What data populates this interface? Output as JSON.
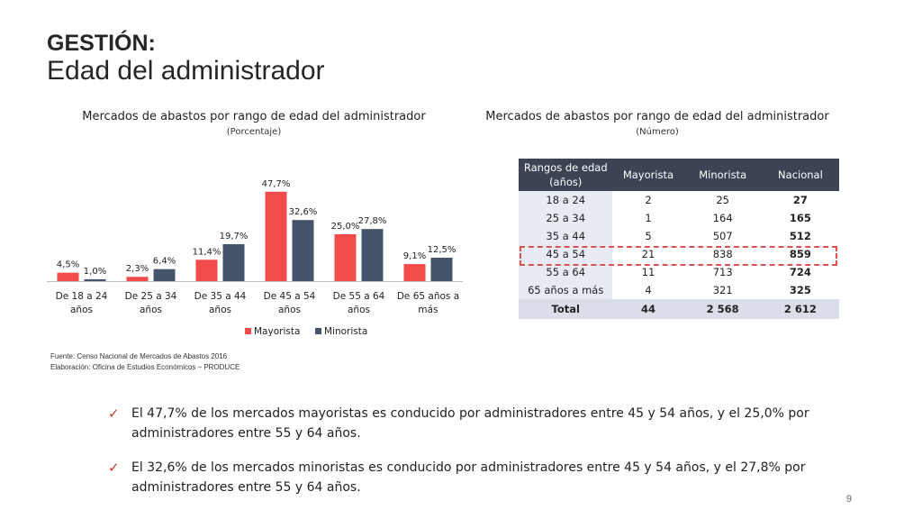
{
  "slide": {
    "title": "GESTIÓN:",
    "subtitle": "Edad del administrador",
    "page_number": "9"
  },
  "left_panel": {
    "title": "Mercados de abastos por rango de edad del administrador",
    "subtitle": "(Porcentaje)"
  },
  "right_panel": {
    "title": "Mercados de abastos por rango de edad del administrador",
    "subtitle": "(Número)"
  },
  "chart_data": {
    "type": "bar",
    "categories": [
      "De 18 a 24 años",
      "De 25 a 34 años",
      "De 35 a 44 años",
      "De 45 a 54 años",
      "De 55 a 64 años",
      "De 65 años a más"
    ],
    "category_lines": [
      [
        "De 18 a 24",
        "años"
      ],
      [
        "De 25 a 34",
        "años"
      ],
      [
        "De 35 a 44",
        "años"
      ],
      [
        "De 45 a 54",
        "años"
      ],
      [
        "De 55 a 64",
        "años"
      ],
      [
        "De 65 años a",
        "más"
      ]
    ],
    "series": [
      {
        "name": "Mayorista",
        "values": [
          4.5,
          2.3,
          11.4,
          47.7,
          25.0,
          9.1
        ],
        "labels": [
          "4,5%",
          "2,3%",
          "11,4%",
          "47,7%",
          "25,0%",
          "9,1%"
        ],
        "color": "#f44b4b"
      },
      {
        "name": "Minorista",
        "values": [
          1.0,
          6.4,
          19.7,
          32.6,
          27.8,
          12.5
        ],
        "labels": [
          "1,0%",
          "6,4%",
          "19,7%",
          "32,6%",
          "27,8%",
          "12,5%"
        ],
        "color": "#44546a"
      }
    ],
    "ylim": [
      0,
      50
    ],
    "grid": false,
    "legend": "bottom"
  },
  "table": {
    "headers": [
      "Rangos de edad (años)",
      "Mayorista",
      "Minorista",
      "Nacional"
    ],
    "rows": [
      [
        "18 a 24",
        "2",
        "25",
        "27"
      ],
      [
        "25 a 34",
        "1",
        "164",
        "165"
      ],
      [
        "35 a 44",
        "5",
        "507",
        "512"
      ],
      [
        "45 a 54",
        "21",
        "838",
        "859"
      ],
      [
        "55 a 64",
        "11",
        "713",
        "724"
      ],
      [
        "65 años a más",
        "4",
        "321",
        "325"
      ]
    ],
    "total": [
      "Total",
      "44",
      "2 568",
      "2 612"
    ]
  },
  "source": {
    "line1": "Fuente: Censo Nacional de Mercados de Abastos 2016",
    "line2": "Elaboración: Oficina de Estudios Económicos – PRODUCE"
  },
  "bullets": [
    "El 47,7% de los mercados mayoristas es conducido por administradores entre 45 y 54 años, y el 25,0% por administradores entre 55 y 64 años.",
    "El 32,6% de los mercados minoristas es conducido por administradores entre 45 y 54 años, y el 27,8% por administradores entre 55 y 64 años."
  ],
  "colors": {
    "mayorista": "#f44b4b",
    "minorista": "#44546a",
    "table_header": "#3c4453",
    "check": "#c0392b"
  }
}
